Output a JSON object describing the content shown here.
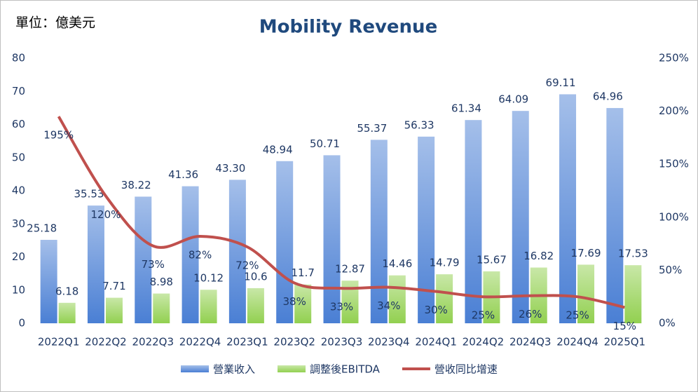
{
  "chart_data": {
    "type": "bar",
    "title": "Mobility Revenue",
    "unit_label": "單位：億美元",
    "categories": [
      "2022Q1",
      "2022Q2",
      "2022Q3",
      "2022Q4",
      "2023Q1",
      "2023Q2",
      "2023Q3",
      "2023Q4",
      "2024Q1",
      "2024Q2",
      "2024Q3",
      "2024Q4",
      "2025Q1"
    ],
    "series": [
      {
        "name": "營業收入",
        "color": "#4a7fd4",
        "values": [
          25.18,
          35.53,
          38.22,
          41.36,
          43.3,
          48.94,
          50.71,
          55.37,
          56.33,
          61.34,
          64.09,
          69.11,
          64.96
        ],
        "value_labels": [
          "25.18",
          "35.53",
          "38.22",
          "41.36",
          "43.30",
          "48.94",
          "50.71",
          "55.37",
          "56.33",
          "61.34",
          "64.09",
          "69.11",
          "64.96"
        ]
      },
      {
        "name": "調整後EBITDA",
        "color": "#92d050",
        "values": [
          6.18,
          7.71,
          8.98,
          10.12,
          10.6,
          11.7,
          12.87,
          14.46,
          14.79,
          15.67,
          16.82,
          17.69,
          17.53
        ]
      },
      {
        "name": "營收同比增速",
        "color": "#c0504d",
        "type": "line",
        "axis": "y2",
        "values": [
          195,
          120,
          73,
          82,
          72,
          38,
          33,
          34,
          30,
          25,
          26,
          25,
          15
        ],
        "value_labels": [
          "195%",
          "120%",
          "73%",
          "82%",
          "72%",
          "38%",
          "33%",
          "34%",
          "30%",
          "25%",
          "26%",
          "25%",
          "15%"
        ]
      }
    ],
    "ylim": [
      0,
      80
    ],
    "yticks": [
      0,
      10,
      20,
      30,
      40,
      50,
      60,
      70,
      80
    ],
    "y2lim": [
      0,
      250
    ],
    "y2ticks": [
      {
        "value": 0,
        "label": "0%"
      },
      {
        "value": 50,
        "label": "50%"
      },
      {
        "value": 100,
        "label": "100%"
      },
      {
        "value": 150,
        "label": "150%"
      },
      {
        "value": 200,
        "label": "200%"
      },
      {
        "value": 250,
        "label": "250%"
      }
    ],
    "grid": false,
    "legend": "bottom"
  }
}
